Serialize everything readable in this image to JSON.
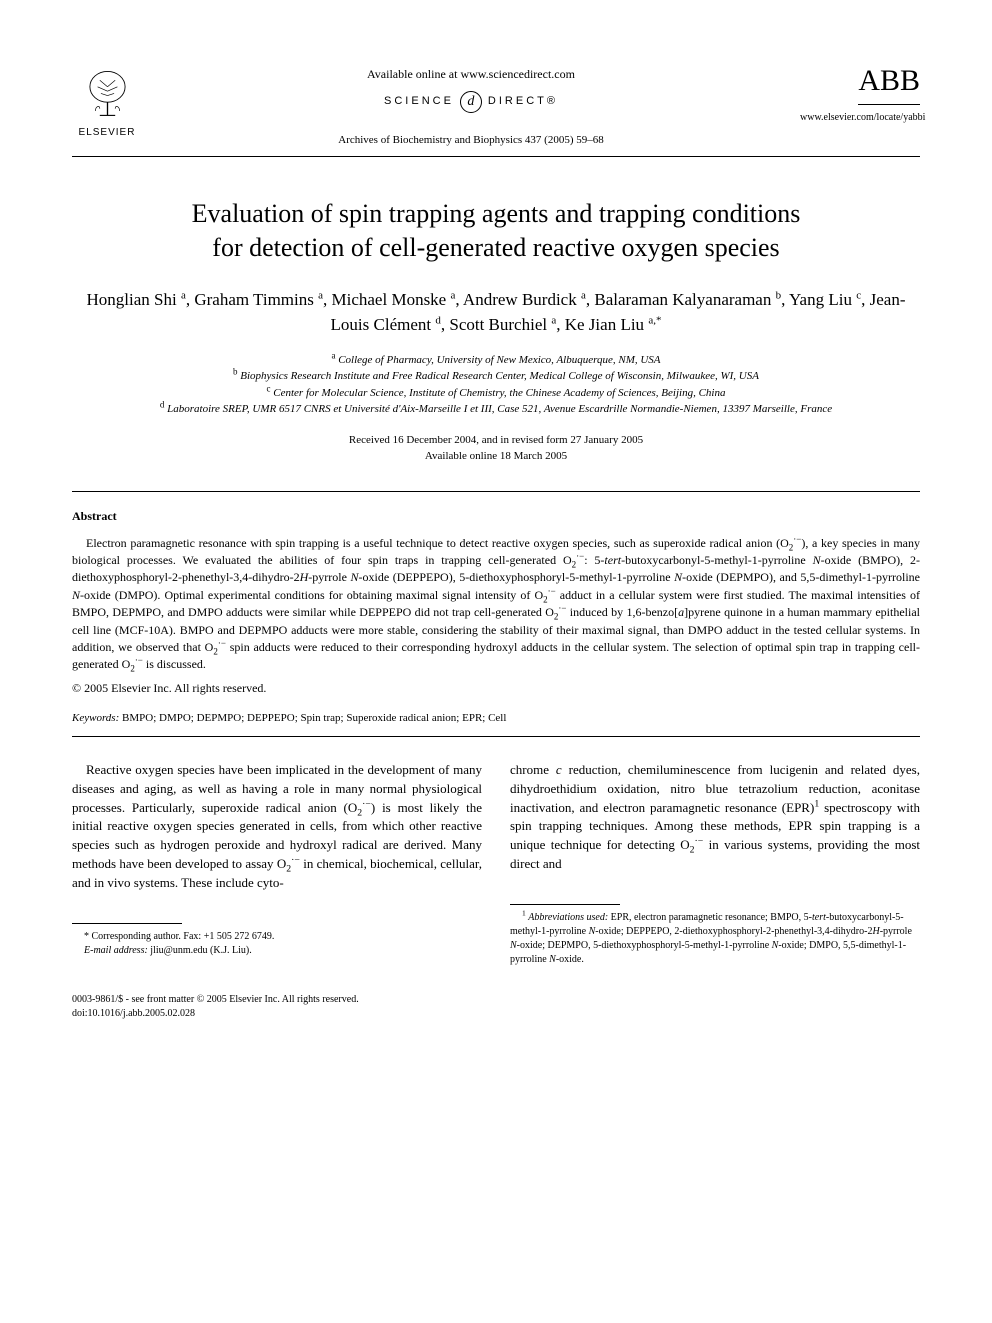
{
  "header": {
    "elsevier_label": "ELSEVIER",
    "available_online": "Available online at www.sciencedirect.com",
    "science_left": "SCIENCE",
    "science_d": "d",
    "science_right": "DIRECT®",
    "journal_ref": "Archives of Biochemistry and Biophysics 437 (2005) 59–68",
    "abb": "ABB",
    "journal_url": "www.elsevier.com/locate/yabbi"
  },
  "title_line1": "Evaluation of spin trapping agents and trapping conditions",
  "title_line2": "for detection of cell-generated reactive oxygen species",
  "authors_html": "Honglian Shi <sup>a</sup>, Graham Timmins <sup>a</sup>, Michael Monske <sup>a</sup>, Andrew Burdick <sup>a</sup>, Balaraman Kalyanaraman <sup>b</sup>, Yang Liu <sup>c</sup>, Jean-Louis Clément <sup>d</sup>, Scott Burchiel <sup>a</sup>, Ke Jian Liu <sup>a,*</sup>",
  "affiliations": [
    {
      "sup": "a",
      "text": "College of Pharmacy, University of New Mexico, Albuquerque, NM, USA"
    },
    {
      "sup": "b",
      "text": "Biophysics Research Institute and Free Radical Research Center, Medical College of Wisconsin, Milwaukee, WI, USA"
    },
    {
      "sup": "c",
      "text": "Center for Molecular Science, Institute of Chemistry, the Chinese Academy of Sciences, Beijing, China"
    },
    {
      "sup": "d",
      "text": "Laboratoire SREP, UMR 6517 CNRS et Université d'Aix-Marseille I et III, Case 521, Avenue Escardrille Normandie-Niemen, 13397 Marseille, France"
    }
  ],
  "dates_line1": "Received 16 December 2004, and in revised form 27 January 2005",
  "dates_line2": "Available online 18 March 2005",
  "abstract": {
    "heading": "Abstract",
    "body_html": "Electron paramagnetic resonance with spin trapping is a useful technique to detect reactive oxygen species, such as superoxide radical anion (O<sub>2</sub><sup>·−</sup>), a key species in many biological processes. We evaluated the abilities of four spin traps in trapping cell-generated O<sub>2</sub><sup>·−</sup>: 5-<span class=\"ital\">tert</span>-butoxycarbonyl-5-methyl-1-pyrroline <span class=\"ital\">N</span>-oxide (BMPO), 2-diethoxyphosphoryl-2-phenethyl-3,4-dihydro-2<span class=\"ital\">H</span>-pyrrole <span class=\"ital\">N</span>-oxide (DEPPEPO), 5-diethoxyphosphoryl-5-methyl-1-pyrroline <span class=\"ital\">N</span>-oxide (DEPMPO), and 5,5-dimethyl-1-pyrroline <span class=\"ital\">N</span>-oxide (DMPO). Optimal experimental conditions for obtaining maximal signal intensity of O<sub>2</sub><sup>·−</sup> adduct in a cellular system were first studied. The maximal intensities of BMPO, DEPMPO, and DMPO adducts were similar while DEPPEPO did not trap cell-generated O<sub>2</sub><sup>·−</sup> induced by 1,6-benzo[<span class=\"ital\">a</span>]pyrene quinone in a human mammary epithelial cell line (MCF-10A). BMPO and DEPMPO adducts were more stable, considering the stability of their maximal signal, than DMPO adduct in the tested cellular systems. In addition, we observed that O<sub>2</sub><sup>·−</sup> spin adducts were reduced to their corresponding hydroxyl adducts in the cellular system. The selection of optimal spin trap in trapping cell-generated O<sub>2</sub><sup>·−</sup> is discussed.",
    "copyright": "© 2005 Elsevier Inc. All rights reserved."
  },
  "keywords": {
    "label": "Keywords:",
    "text": "BMPO; DMPO; DEPMPO; DEPPEPO; Spin trap; Superoxide radical anion; EPR; Cell"
  },
  "body": {
    "col1_html": "Reactive oxygen species have been implicated in the development of many diseases and aging, as well as having a role in many normal physiological processes. Particularly, superoxide radical anion (O<sub>2</sub><sup>·−</sup>) is most likely the initial reactive oxygen species generated in cells, from which other reactive species such as hydrogen peroxide and hydroxyl radical are derived. Many methods have been developed to assay O<sub>2</sub><sup>·−</sup> in chemical, biochemical, cellular, and in vivo systems. These include cyto-",
    "col2_html": "chrome <span class=\"ital\">c</span> reduction, chemiluminescence from lucigenin and related dyes, dihydroethidium oxidation, nitro blue tetrazolium reduction, aconitase inactivation, and electron paramagnetic resonance (EPR)<sup>1</sup> spectroscopy with spin trapping techniques. Among these methods, EPR spin trapping is a unique technique for detecting O<sub>2</sub><sup>·−</sup> in various systems, providing the most direct and"
  },
  "footnotes": {
    "left_star": "* Corresponding author. Fax: +1 505 272 6749.",
    "left_email_label": "E-mail address:",
    "left_email": "jliu@unm.edu (K.J. Liu).",
    "right_html": "<sup>1</sup> <span class=\"ital\">Abbreviations used:</span> EPR, electron paramagnetic resonance; BMPO, 5-<span class=\"ital\">tert</span>-butoxycarbonyl-5-methyl-1-pyrroline <span class=\"ital\">N</span>-oxide; DEPPEPO, 2-diethoxyphosphoryl-2-phenethyl-3,4-dihydro-2<span class=\"ital\">H</span>-pyrrole <span class=\"ital\">N</span>-oxide; DEPMPO, 5-diethoxyphosphoryl-5-methyl-1-pyrroline <span class=\"ital\">N</span>-oxide; DMPO, 5,5-dimethyl-1-pyrroline <span class=\"ital\">N</span>-oxide."
  },
  "footer": {
    "line1": "0003-9861/$ - see front matter © 2005 Elsevier Inc. All rights reserved.",
    "line2": "doi:10.1016/j.abb.2005.02.028"
  },
  "colors": {
    "text": "#000000",
    "background": "#ffffff",
    "rule": "#000000"
  }
}
